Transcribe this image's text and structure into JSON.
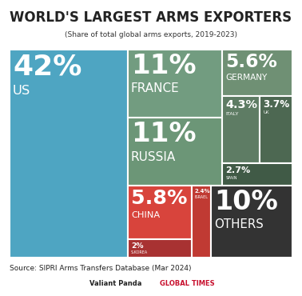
{
  "chart_data": {
    "type": "treemap",
    "title": "WORLD'S LARGEST ARMS EXPORTERS",
    "subtitle": "(Share of total global arms exports, 2019-2023)",
    "categories": [
      "US",
      "FRANCE",
      "RUSSIA",
      "GERMANY",
      "ITALY",
      "UK",
      "SPAIN",
      "CHINA",
      "ISRAEL",
      "S.KOREA",
      "OTHERS"
    ],
    "values": [
      42,
      11,
      11,
      5.6,
      4.3,
      3.7,
      2.7,
      5.8,
      2.4,
      2,
      10
    ],
    "value_labels": [
      "42%",
      "11%",
      "11%",
      "5.6%",
      "4.3%",
      "3.7%",
      "2.7%",
      "5.8%",
      "2.4%",
      "2%",
      "10%"
    ],
    "colors": [
      "#4ea5c2",
      "#729c80",
      "#6c9677",
      "#6f9074",
      "#5e7c64",
      "#4d6852",
      "#405a46",
      "#d8443c",
      "#c03a33",
      "#a83232",
      "#333333"
    ],
    "data_labels": true,
    "source": "Source: SIPRI Arms Transfers Database (Mar 2024)",
    "credits": [
      "Valiant Panda",
      "GLOBAL TIMES"
    ]
  }
}
